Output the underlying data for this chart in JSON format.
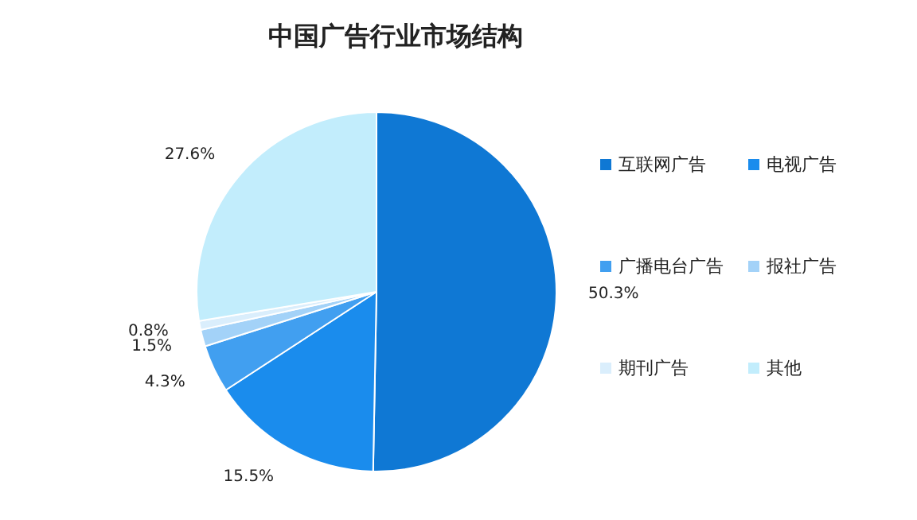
{
  "chart_data": {
    "type": "pie",
    "title": "中国广告行业市场结构",
    "categories": [
      "互联网广告",
      "电视广告",
      "广播电台广告",
      "报社广告",
      "期刊广告",
      "其他"
    ],
    "values": [
      50.3,
      15.5,
      4.3,
      1.5,
      0.8,
      27.6
    ],
    "value_labels": [
      "50.3%",
      "15.5%",
      "4.3%",
      "1.5%",
      "0.8%",
      "27.6%"
    ],
    "colors": [
      "#0f78d4",
      "#1a8ced",
      "#419ff0",
      "#a3d2f8",
      "#daeefc",
      "#c2edfc"
    ],
    "legend": "right"
  }
}
